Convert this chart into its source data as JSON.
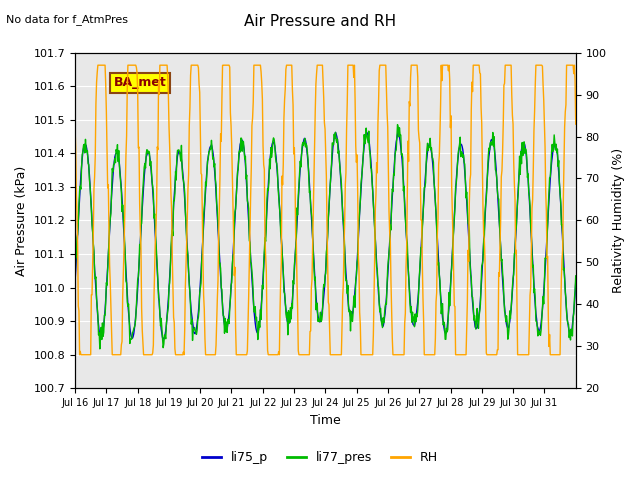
{
  "title": "Air Pressure and RH",
  "no_data_text": "No data for f_AtmPres",
  "ba_label": "BA_met",
  "xlabel": "Time",
  "ylabel_left": "Air Pressure (kPa)",
  "ylabel_right": "Relativity Humidity (%)",
  "ylim_left": [
    100.7,
    101.7
  ],
  "ylim_right": [
    20,
    100
  ],
  "yticks_left": [
    100.7,
    100.8,
    100.9,
    101.0,
    101.1,
    101.2,
    101.3,
    101.4,
    101.5,
    101.6,
    101.7
  ],
  "yticks_right": [
    20,
    30,
    40,
    50,
    60,
    70,
    80,
    90,
    100
  ],
  "xtick_labels": [
    "Jul 16",
    "Jul 17",
    "Jul 18",
    "Jul 19",
    "Jul 20",
    "Jul 21",
    "Jul 22",
    "Jul 23",
    "Jul 24",
    "Jul 25",
    "Jul 26",
    "Jul 27",
    "Jul 28",
    "Jul 29",
    "Jul 30",
    "Jul 31"
  ],
  "color_blue": "#0000CC",
  "color_green": "#00BB00",
  "color_orange": "#FFA500",
  "legend_labels": [
    "li75_p",
    "li77_pres",
    "RH"
  ],
  "bg_color": "#E8E8E8",
  "fig_bg": "#FFFFFF",
  "grid_color": "#FFFFFF",
  "ba_box_color": "#FFFF00",
  "ba_text_color": "#8B0000",
  "ba_edge_color": "#8B4513"
}
